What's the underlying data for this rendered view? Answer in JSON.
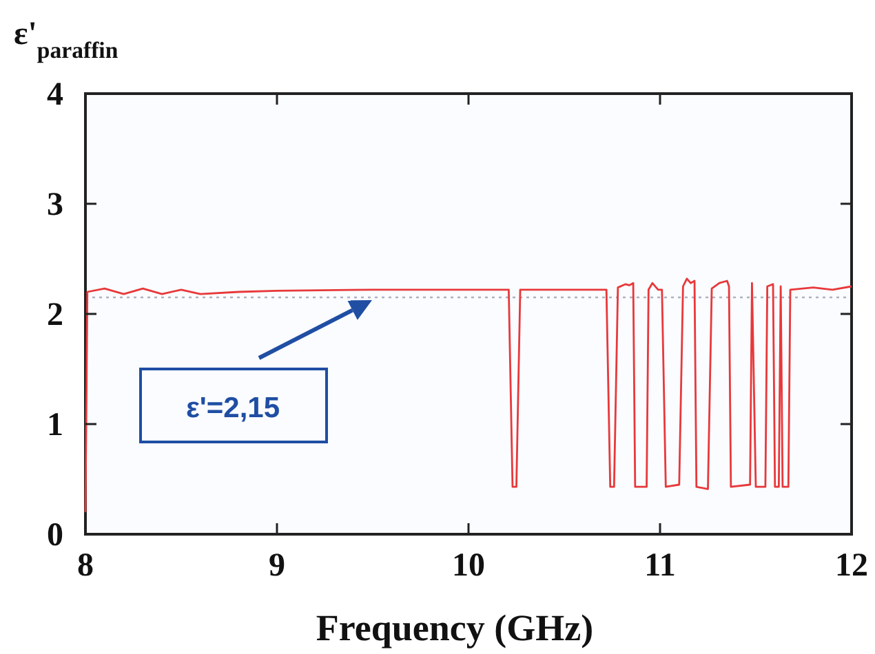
{
  "chart_data": {
    "type": "line",
    "xlabel": "Frequency (GHz)",
    "ylabel": "ε'$_{paraffin}$",
    "xlim": [
      8,
      12
    ],
    "xticks": [
      8,
      9,
      10,
      11,
      12
    ],
    "ylim": [
      0,
      4
    ],
    "yticks": [
      0,
      1,
      2,
      3,
      4
    ],
    "grid": false,
    "marker": "none",
    "line_style": "solid",
    "ref_lines": [
      {
        "axis": "y",
        "value": 2.15,
        "color": "#b0b0c0",
        "line_style": "dotted"
      }
    ],
    "annotations": [
      "ε'=2,15"
    ],
    "series": [
      {
        "color": "#e8383a",
        "x": [
          8,
          8.01,
          8.1,
          8.2,
          8.3,
          8.4,
          8.5,
          8.6,
          8.8,
          9,
          9.5,
          10,
          10.21,
          10.23,
          10.25,
          10.27,
          10.72,
          10.74,
          10.76,
          10.78,
          10.82,
          10.84,
          10.86,
          10.87,
          10.93,
          10.94,
          10.96,
          10.99,
          11.01,
          11.03,
          11.1,
          11.12,
          11.14,
          11.16,
          11.18,
          11.19,
          11.25,
          11.27,
          11.31,
          11.35,
          11.36,
          11.37,
          11.47,
          11.48,
          11.5,
          11.55,
          11.56,
          11.59,
          11.6,
          11.62,
          11.63,
          11.64,
          11.67,
          11.68,
          11.8,
          11.9,
          12
        ],
        "values": [
          0.2,
          2.2,
          2.23,
          2.18,
          2.23,
          2.18,
          2.22,
          2.18,
          2.2,
          2.21,
          2.22,
          2.22,
          2.22,
          0.43,
          0.43,
          2.22,
          2.22,
          0.43,
          0.43,
          2.24,
          2.27,
          2.26,
          2.28,
          0.43,
          0.43,
          2.22,
          2.28,
          2.22,
          2.22,
          0.43,
          0.45,
          2.25,
          2.32,
          2.28,
          2.3,
          0.43,
          0.41,
          2.23,
          2.28,
          2.3,
          2.25,
          0.43,
          0.45,
          2.28,
          0.43,
          0.43,
          2.25,
          2.27,
          0.43,
          0.43,
          2.25,
          0.43,
          0.43,
          2.22,
          2.24,
          2.22,
          2.25
        ]
      }
    ]
  }
}
